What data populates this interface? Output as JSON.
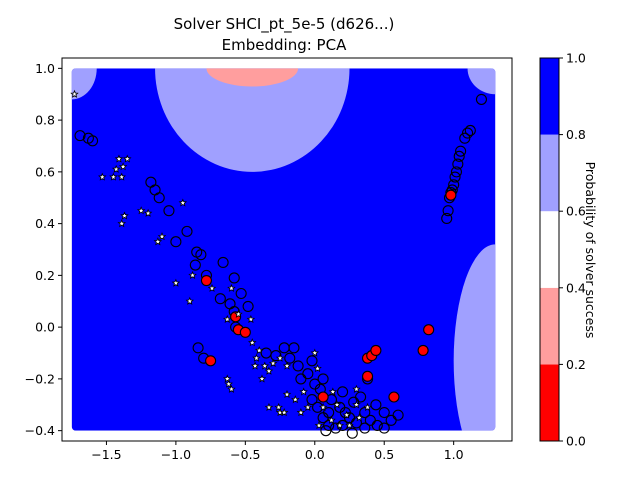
{
  "chart_data": {
    "type": "scatter",
    "title": "Solver SHCI_pt_5e-5 (d626...)",
    "subtitle": "Embedding: PCA",
    "xlabel": "",
    "ylabel": "",
    "xlim": [
      -1.82,
      1.42
    ],
    "ylim": [
      -0.44,
      1.04
    ],
    "x_ticks": [
      -1.5,
      -1.0,
      -0.5,
      0.0,
      0.5,
      1.0
    ],
    "x_tick_labels": [
      "−1.5",
      "−1.0",
      "−0.5",
      "0.0",
      "0.5",
      "1.0"
    ],
    "y_ticks": [
      -0.4,
      -0.2,
      0.0,
      0.2,
      0.4,
      0.6,
      0.8,
      1.0
    ],
    "y_tick_labels": [
      "−0.4",
      "−0.2",
      "0.0",
      "0.2",
      "0.4",
      "0.6",
      "0.8",
      "1.0"
    ],
    "grid": false,
    "background_field": {
      "x_range": [
        -1.75,
        1.3
      ],
      "y_range": [
        -0.4,
        1.0
      ],
      "regions": [
        {
          "probability": 0.7,
          "color": "#a0a0ff",
          "shape": "top-arc",
          "center": [
            -0.45,
            1.0
          ],
          "radii": [
            0.7,
            0.4
          ]
        },
        {
          "probability": 0.3,
          "color": "#ff9e9e",
          "shape": "top-arc",
          "center": [
            -0.45,
            1.0
          ],
          "radii": [
            0.33,
            0.07
          ]
        },
        {
          "probability": 0.7,
          "color": "#a0a0ff",
          "shape": "corner-left",
          "center": [
            -1.75,
            1.0
          ],
          "radii": [
            0.18,
            0.12
          ]
        },
        {
          "probability": 0.7,
          "color": "#a0a0ff",
          "shape": "corner-right",
          "center": [
            1.3,
            1.0
          ],
          "radii": [
            0.2,
            0.1
          ]
        },
        {
          "probability": 0.7,
          "color": "#a0a0ff",
          "shape": "right-bulge",
          "center": [
            1.3,
            -0.13
          ],
          "radii": [
            0.3,
            0.45
          ]
        }
      ],
      "base_probability": 0.9,
      "base_color": "#0000ff"
    },
    "series": [
      {
        "marker": "circle-open",
        "points": [
          [
            -1.69,
            0.74
          ],
          [
            -1.63,
            0.73
          ],
          [
            -1.6,
            0.72
          ],
          [
            -1.18,
            0.56
          ],
          [
            -1.15,
            0.53
          ],
          [
            -1.12,
            0.5
          ],
          [
            -1.05,
            0.45
          ],
          [
            -1.0,
            0.33
          ],
          [
            -0.92,
            0.37
          ],
          [
            -0.85,
            0.29
          ],
          [
            -0.82,
            0.28
          ],
          [
            -0.86,
            0.24
          ],
          [
            -0.78,
            0.2
          ],
          [
            -0.66,
            0.25
          ],
          [
            -0.58,
            0.19
          ],
          [
            -0.68,
            0.11
          ],
          [
            -0.61,
            0.09
          ],
          [
            -0.53,
            0.13
          ],
          [
            -0.58,
            0.06
          ],
          [
            -0.57,
            0.0
          ],
          [
            -0.48,
            0.08
          ],
          [
            -0.84,
            -0.08
          ],
          [
            -0.8,
            -0.12
          ],
          [
            -0.35,
            -0.1
          ],
          [
            -0.28,
            -0.11
          ],
          [
            -0.22,
            -0.08
          ],
          [
            -0.18,
            -0.12
          ],
          [
            -0.15,
            -0.08
          ],
          [
            -0.12,
            -0.15
          ],
          [
            -0.05,
            -0.18
          ],
          [
            0.0,
            -0.22
          ],
          [
            -0.02,
            -0.28
          ],
          [
            0.02,
            -0.31
          ],
          [
            0.06,
            -0.35
          ],
          [
            0.1,
            -0.38
          ],
          [
            0.15,
            -0.39
          ],
          [
            0.2,
            -0.38
          ],
          [
            0.25,
            -0.35
          ],
          [
            0.3,
            -0.37
          ],
          [
            0.36,
            -0.33
          ],
          [
            0.4,
            -0.36
          ],
          [
            0.44,
            -0.3
          ],
          [
            0.5,
            -0.33
          ],
          [
            0.55,
            -0.36
          ],
          [
            0.6,
            -0.34
          ],
          [
            0.2,
            -0.25
          ],
          [
            0.18,
            -0.31
          ],
          [
            0.28,
            -0.29
          ],
          [
            0.33,
            -0.27
          ],
          [
            0.12,
            -0.28
          ],
          [
            0.1,
            -0.33
          ],
          [
            0.08,
            -0.4
          ],
          [
            0.27,
            -0.41
          ],
          [
            0.45,
            -0.38
          ],
          [
            0.04,
            -0.24
          ],
          [
            -0.02,
            -0.13
          ],
          [
            0.06,
            -0.2
          ],
          [
            -0.1,
            -0.2
          ],
          [
            0.38,
            -0.2
          ],
          [
            0.22,
            -0.33
          ],
          [
            0.36,
            -0.39
          ],
          [
            0.5,
            -0.39
          ],
          [
            0.95,
            0.42
          ],
          [
            0.96,
            0.45
          ],
          [
            0.97,
            0.5
          ],
          [
            0.98,
            0.52
          ],
          [
            0.99,
            0.53
          ],
          [
            1.0,
            0.55
          ],
          [
            1.01,
            0.58
          ],
          [
            1.02,
            0.6
          ],
          [
            1.03,
            0.63
          ],
          [
            1.04,
            0.66
          ],
          [
            1.05,
            0.68
          ],
          [
            1.08,
            0.73
          ],
          [
            1.1,
            0.75
          ],
          [
            1.12,
            0.76
          ],
          [
            1.2,
            0.88
          ]
        ]
      },
      {
        "marker": "circle-red",
        "points": [
          [
            -0.78,
            0.18
          ],
          [
            -0.57,
            0.04
          ],
          [
            -0.55,
            -0.01
          ],
          [
            -0.5,
            -0.02
          ],
          [
            -0.75,
            -0.13
          ],
          [
            0.06,
            -0.27
          ],
          [
            0.38,
            -0.12
          ],
          [
            0.41,
            -0.11
          ],
          [
            0.44,
            -0.09
          ],
          [
            0.38,
            -0.19
          ],
          [
            0.57,
            -0.27
          ],
          [
            0.78,
            -0.09
          ],
          [
            0.82,
            -0.01
          ],
          [
            0.98,
            0.51
          ]
        ]
      },
      {
        "marker": "star-small",
        "points": [
          [
            -1.73,
            0.9
          ],
          [
            -1.41,
            0.65
          ],
          [
            -1.35,
            0.65
          ],
          [
            -1.38,
            0.62
          ],
          [
            -1.43,
            0.61
          ],
          [
            -1.39,
            0.58
          ],
          [
            -1.45,
            0.58
          ],
          [
            -1.53,
            0.58
          ],
          [
            -1.37,
            0.43
          ],
          [
            -1.39,
            0.4
          ],
          [
            -1.25,
            0.45
          ],
          [
            -1.2,
            0.44
          ],
          [
            -1.1,
            0.35
          ],
          [
            -1.13,
            0.33
          ],
          [
            -0.95,
            0.48
          ],
          [
            -1.0,
            0.17
          ],
          [
            -0.9,
            0.1
          ],
          [
            -0.88,
            0.2
          ],
          [
            -0.74,
            0.15
          ],
          [
            -0.6,
            0.15
          ],
          [
            -0.55,
            0.05
          ],
          [
            -0.63,
            0.03
          ],
          [
            -0.46,
            0.03
          ],
          [
            -0.45,
            -0.06
          ],
          [
            -0.4,
            -0.09
          ],
          [
            -0.36,
            -0.15
          ],
          [
            -0.33,
            -0.17
          ],
          [
            -0.3,
            -0.14
          ],
          [
            -0.25,
            -0.12
          ],
          [
            -0.42,
            -0.12
          ],
          [
            -0.43,
            -0.15
          ],
          [
            -0.38,
            -0.2
          ],
          [
            -0.63,
            -0.2
          ],
          [
            -0.62,
            -0.22
          ],
          [
            -0.6,
            -0.24
          ],
          [
            -0.2,
            -0.15
          ],
          [
            -0.2,
            -0.26
          ],
          [
            -0.14,
            -0.28
          ],
          [
            -0.08,
            -0.25
          ],
          [
            -0.05,
            -0.31
          ],
          [
            -0.33,
            -0.31
          ],
          [
            -0.26,
            -0.31
          ],
          [
            -0.25,
            -0.33
          ],
          [
            -0.22,
            -0.33
          ],
          [
            -0.1,
            -0.33
          ],
          [
            0.0,
            -0.1
          ],
          [
            0.02,
            -0.16
          ],
          [
            0.13,
            -0.25
          ],
          [
            0.16,
            -0.3
          ],
          [
            0.23,
            -0.34
          ],
          [
            0.3,
            -0.24
          ],
          [
            0.3,
            -0.3
          ],
          [
            0.32,
            -0.35
          ],
          [
            0.38,
            -0.31
          ],
          [
            0.25,
            -0.38
          ],
          [
            0.18,
            -0.38
          ],
          [
            0.12,
            -0.36
          ],
          [
            0.06,
            -0.31
          ],
          [
            0.03,
            -0.38
          ]
        ]
      }
    ],
    "colorbar": {
      "label": "Probability of solver success",
      "range": [
        0.0,
        1.0
      ],
      "ticks": [
        0.0,
        0.2,
        0.4,
        0.6,
        0.8,
        1.0
      ],
      "tick_labels": [
        "0.0",
        "0.2",
        "0.4",
        "0.6",
        "0.8",
        "1.0"
      ],
      "bands": [
        {
          "from": 0.0,
          "to": 0.2,
          "color": "#ff0000"
        },
        {
          "from": 0.2,
          "to": 0.4,
          "color": "#ff9e9e"
        },
        {
          "from": 0.4,
          "to": 0.5,
          "color": "#ffffff"
        },
        {
          "from": 0.5,
          "to": 0.6,
          "color": "#ffffff"
        },
        {
          "from": 0.6,
          "to": 0.8,
          "color": "#a0a0ff"
        },
        {
          "from": 0.8,
          "to": 1.0,
          "color": "#0000ff"
        }
      ]
    }
  }
}
